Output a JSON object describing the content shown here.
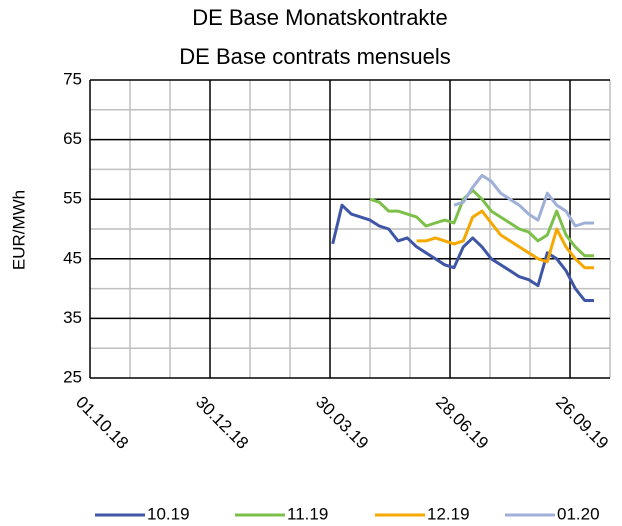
{
  "chart_data": {
    "type": "line",
    "title": "DE Base Monatskontrakte",
    "subtitle": "DE Base contrats mensuels",
    "y_label": "EUR/MWh",
    "x": [
      "2019-04-01",
      "2019-04-08",
      "2019-04-15",
      "2019-04-22",
      "2019-04-29",
      "2019-05-06",
      "2019-05-13",
      "2019-05-20",
      "2019-05-27",
      "2019-06-03",
      "2019-06-10",
      "2019-06-17",
      "2019-06-24",
      "2019-07-01",
      "2019-07-08",
      "2019-07-15",
      "2019-07-22",
      "2019-07-29",
      "2019-08-05",
      "2019-08-12",
      "2019-08-19",
      "2019-08-26",
      "2019-09-02",
      "2019-09-09",
      "2019-09-16",
      "2019-09-23",
      "2019-09-30",
      "2019-10-07",
      "2019-10-14"
    ],
    "series": [
      {
        "name": "10.19",
        "color": "#3f56a6",
        "values": [
          47.5,
          54,
          52.5,
          52,
          51.5,
          50.5,
          50,
          48,
          48.5,
          47,
          46,
          45,
          44,
          43.5,
          47,
          48.5,
          47,
          45,
          44,
          43,
          42,
          41.5,
          40.5,
          46,
          45,
          43,
          40,
          38,
          38
        ]
      },
      {
        "name": "11.19",
        "color": "#7cc04a",
        "values": [
          null,
          null,
          null,
          null,
          55,
          54.5,
          53,
          53,
          52.5,
          52,
          50.5,
          51,
          51.5,
          51,
          55,
          56.5,
          55,
          53,
          52,
          51,
          50,
          49.5,
          48,
          49,
          53,
          49,
          47,
          45.5,
          45.5
        ]
      },
      {
        "name": "12.19",
        "color": "#f5a800",
        "values": [
          null,
          null,
          null,
          null,
          null,
          null,
          null,
          null,
          null,
          48,
          48,
          48.5,
          48,
          47.5,
          48,
          52,
          53,
          51,
          49,
          48,
          47,
          46,
          45,
          44.5,
          50,
          47,
          45,
          43.5,
          43.5
        ]
      },
      {
        "name": "01.20",
        "color": "#9fb0d8",
        "values": [
          null,
          null,
          null,
          null,
          null,
          null,
          null,
          null,
          null,
          null,
          null,
          null,
          null,
          54,
          54.5,
          57,
          59,
          58,
          56,
          55,
          54,
          52.5,
          51.5,
          56,
          54,
          53,
          50.5,
          51,
          51
        ]
      }
    ],
    "xlim": [
      "2018-10-01",
      "2019-10-26"
    ],
    "xticks": [
      {
        "value": "2018-10-01",
        "label": "01.10.18"
      },
      {
        "value": "2018-12-30",
        "label": "30.12.18"
      },
      {
        "value": "2019-03-30",
        "label": "30.03.19"
      },
      {
        "value": "2019-06-28",
        "label": "28.06.19"
      },
      {
        "value": "2019-09-26",
        "label": "26.09.19"
      }
    ],
    "x_minor_ticks": [
      "2018-10-31",
      "2018-11-30",
      "2019-01-29",
      "2019-02-28",
      "2019-04-29",
      "2019-05-29",
      "2019-07-28",
      "2019-08-27",
      "2019-10-26"
    ],
    "ylim": [
      25,
      75
    ],
    "yticks": [
      25,
      35,
      45,
      55,
      65,
      75
    ],
    "y_minor_ticks": [
      30,
      40,
      50,
      60,
      70
    ],
    "grid": true,
    "legend": "bottom"
  }
}
